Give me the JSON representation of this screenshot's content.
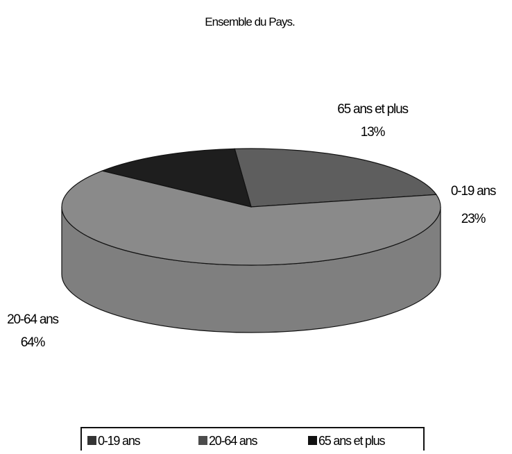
{
  "chart_data": {
    "type": "pie",
    "title": "Ensemble du Pays.",
    "three_d": true,
    "legend_position": "bottom",
    "slices": [
      {
        "name": "0-19 ans",
        "value": 23,
        "label": "23%",
        "color": "#5e5e5e"
      },
      {
        "name": "20-64 ans",
        "value": 64,
        "label": "64%",
        "color": "#8a8a8a"
      },
      {
        "name": "65 ans et plus",
        "value": 13,
        "label": "13%",
        "color": "#1e1e1e"
      }
    ]
  }
}
